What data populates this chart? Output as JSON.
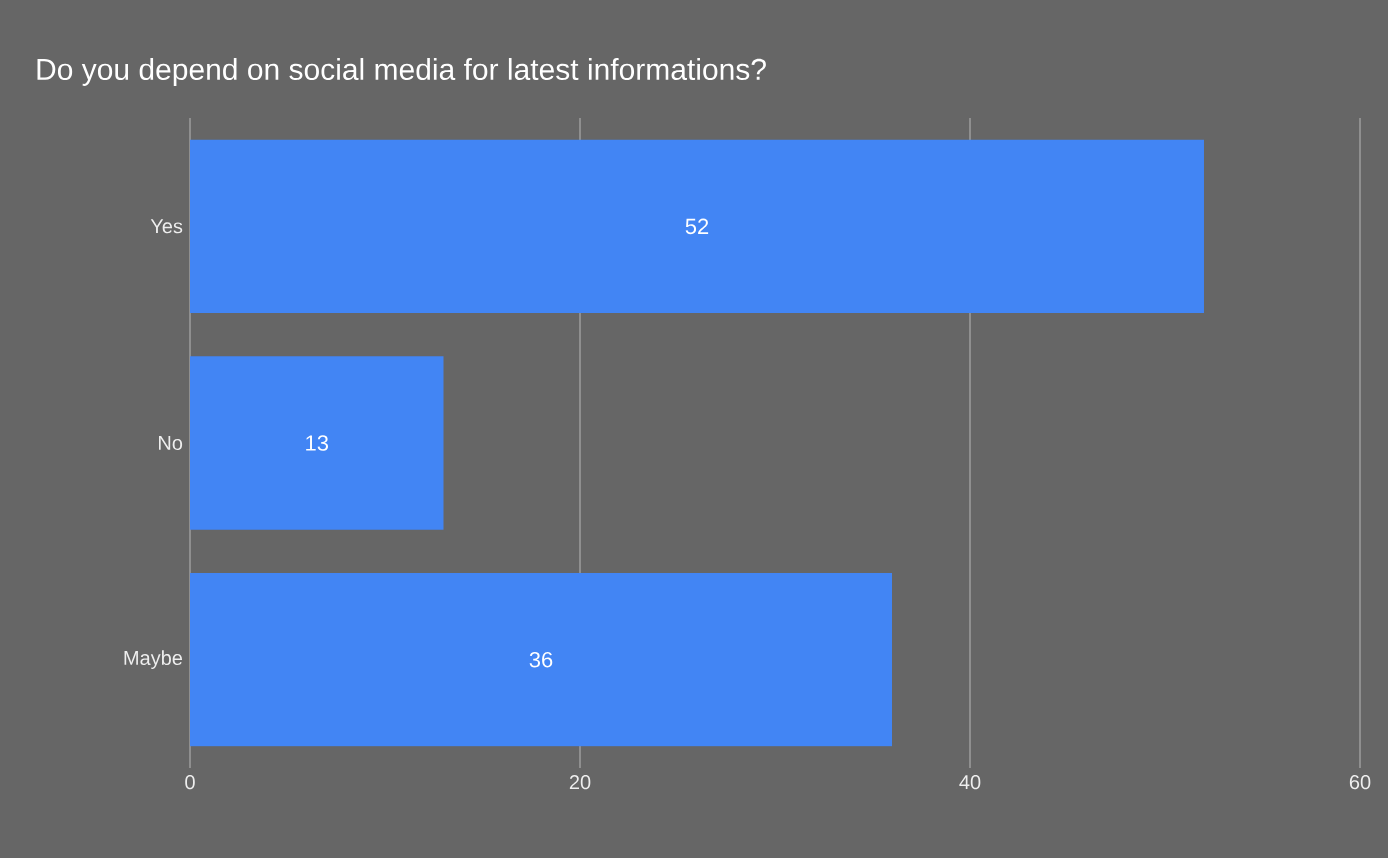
{
  "chart_data": {
    "type": "bar",
    "orientation": "horizontal",
    "title": "Do you depend on social media for latest informations?",
    "categories": [
      "Yes",
      "No",
      "Maybe"
    ],
    "values": [
      52,
      13,
      36
    ],
    "color": "#4285f4",
    "xlim": [
      0,
      60
    ],
    "xticks": [
      0,
      20,
      40,
      60
    ],
    "grid": "x",
    "data_labels": true
  }
}
